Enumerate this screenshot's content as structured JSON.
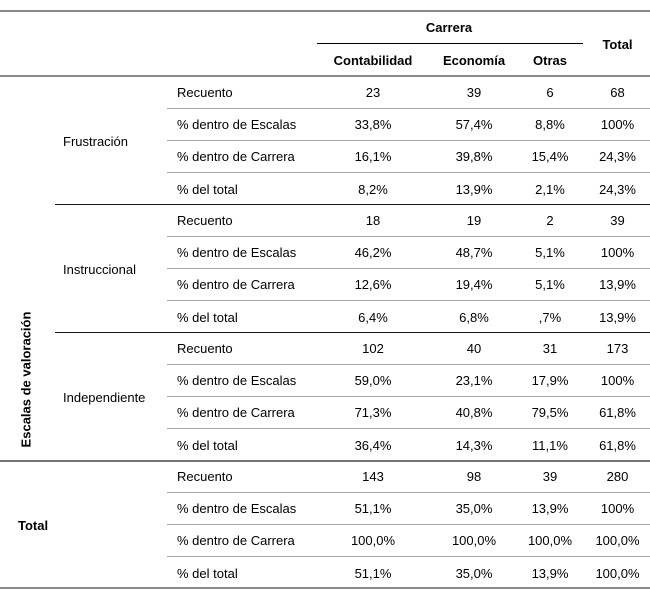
{
  "table": {
    "header": {
      "group_title": "Carrera",
      "columns": [
        "Contabilidad",
        "Economía",
        "Otras"
      ],
      "total_label": "Total"
    },
    "row_axis_title": "Escalas de valoración",
    "row_labels": [
      "Recuento",
      "% dentro de Escalas",
      "% dentro de Carrera",
      "% del total"
    ],
    "groups": [
      {
        "label": "Frustración",
        "rows": [
          {
            "label": "Recuento",
            "values": [
              "23",
              "39",
              "6",
              "68"
            ]
          },
          {
            "label": "% dentro de Escalas",
            "values": [
              "33,8%",
              "57,4%",
              "8,8%",
              "100%"
            ]
          },
          {
            "label": "% dentro de Carrera",
            "values": [
              "16,1%",
              "39,8%",
              "15,4%",
              "24,3%"
            ]
          },
          {
            "label": "% del total",
            "values": [
              "8,2%",
              "13,9%",
              "2,1%",
              "24,3%"
            ]
          }
        ]
      },
      {
        "label": "Instruccional",
        "rows": [
          {
            "label": "Recuento",
            "values": [
              "18",
              "19",
              "2",
              "39"
            ]
          },
          {
            "label": "% dentro de Escalas",
            "values": [
              "46,2%",
              "48,7%",
              "5,1%",
              "100%"
            ]
          },
          {
            "label": "% dentro de Carrera",
            "values": [
              "12,6%",
              "19,4%",
              "5,1%",
              "13,9%"
            ]
          },
          {
            "label": "% del total",
            "values": [
              "6,4%",
              "6,8%",
              ",7%",
              "13,9%"
            ]
          }
        ]
      },
      {
        "label": "Independiente",
        "rows": [
          {
            "label": "Recuento",
            "values": [
              "102",
              "40",
              "31",
              "173"
            ]
          },
          {
            "label": "% dentro de Escalas",
            "values": [
              "59,0%",
              "23,1%",
              "17,9%",
              "100%"
            ]
          },
          {
            "label": "% dentro de Carrera",
            "values": [
              "71,3%",
              "40,8%",
              "79,5%",
              "61,8%"
            ]
          },
          {
            "label": "% del total",
            "values": [
              "36,4%",
              "14,3%",
              "11,1%",
              "61,8%"
            ]
          }
        ]
      }
    ],
    "total_group": {
      "label": "Total",
      "rows": [
        {
          "label": "Recuento",
          "values": [
            "143",
            "98",
            "39",
            "280"
          ]
        },
        {
          "label": "% dentro de Escalas",
          "values": [
            "51,1%",
            "35,0%",
            "13,9%",
            "100%"
          ]
        },
        {
          "label": "% dentro de Carrera",
          "values": [
            "100,0%",
            "100,0%",
            "100,0%",
            "100,0%"
          ]
        },
        {
          "label": "% del total",
          "values": [
            "51,1%",
            "35,0%",
            "13,9%",
            "100,0%"
          ]
        }
      ]
    },
    "colors": {
      "background": "#ffffff",
      "text": "#000000",
      "rule_gray": "#8a8a8a",
      "rule_light_gray": "#a9a9a9",
      "rule_black": "#141414"
    }
  }
}
